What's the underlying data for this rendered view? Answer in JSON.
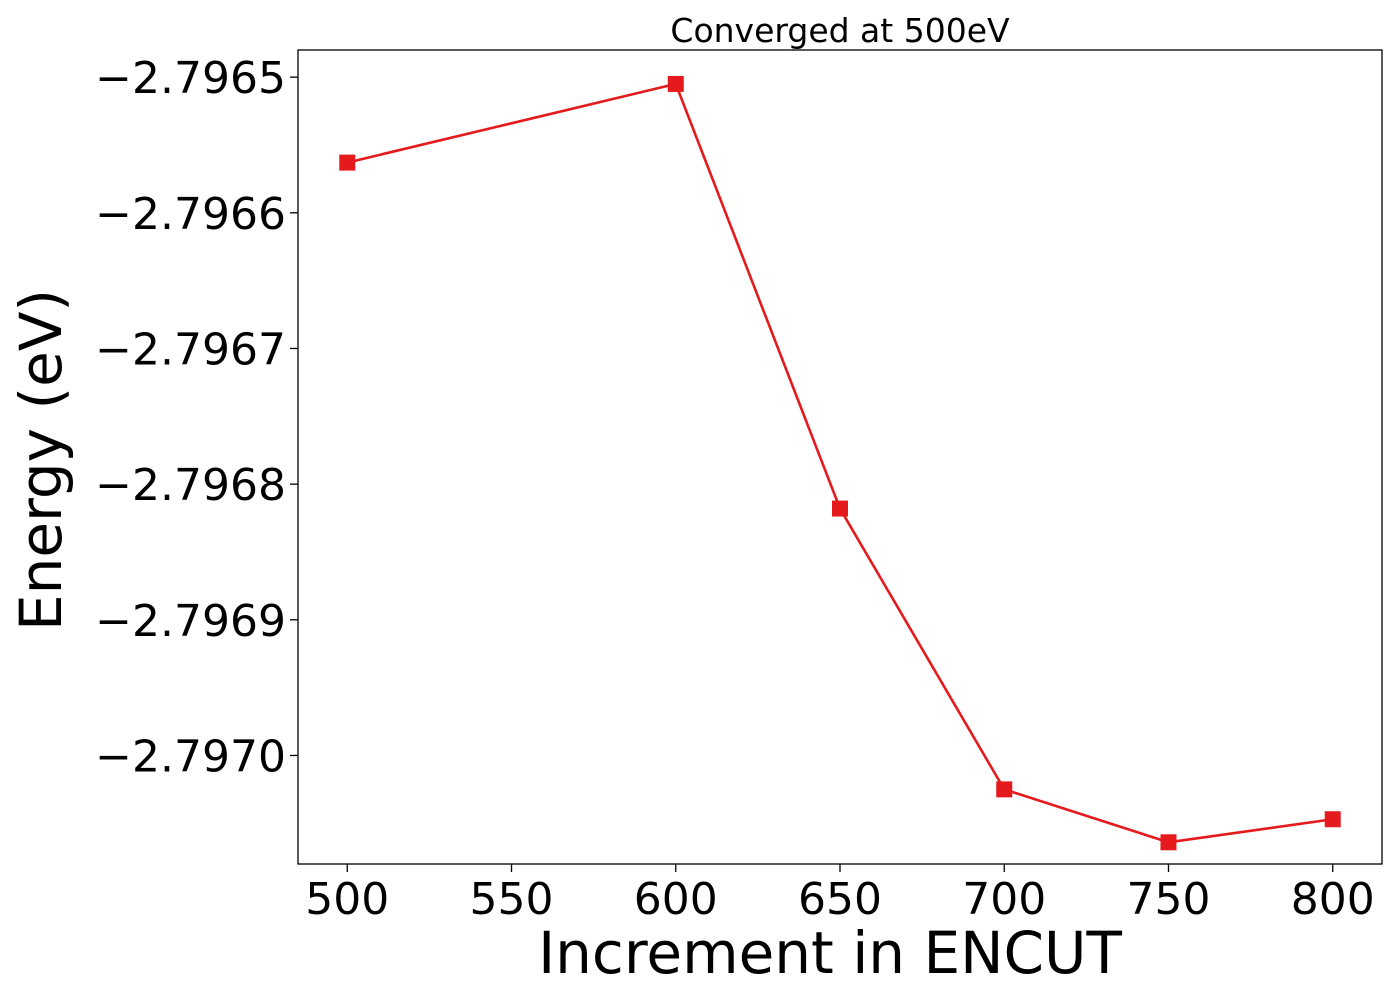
{
  "chart_data": {
    "type": "line",
    "title": "Converged at 500eV",
    "xlabel": "Increment in ENCUT",
    "ylabel": "Energy (eV)",
    "x": [
      500,
      600,
      650,
      700,
      750,
      800
    ],
    "series": [
      {
        "values": [
          -2.796563,
          -2.796505,
          -2.796818,
          -2.797025,
          -2.797064,
          -2.797047
        ],
        "color": "#e41a1c",
        "marker": "square"
      }
    ],
    "xticks": [
      500,
      550,
      600,
      650,
      700,
      750,
      800
    ],
    "xtick_labels": [
      "500",
      "550",
      "600",
      "650",
      "700",
      "750",
      "800"
    ],
    "yticks": [
      -2.7965,
      -2.7966,
      -2.7967,
      -2.7968,
      -2.7969,
      -2.797
    ],
    "ytick_labels": [
      "−2.7965",
      "−2.7966",
      "−2.7967",
      "−2.7968",
      "−2.7969",
      "−2.7970"
    ],
    "xlim": [
      485,
      815
    ],
    "ylim": [
      -2.79708,
      -2.79648
    ],
    "grid": false,
    "legend": "none"
  }
}
